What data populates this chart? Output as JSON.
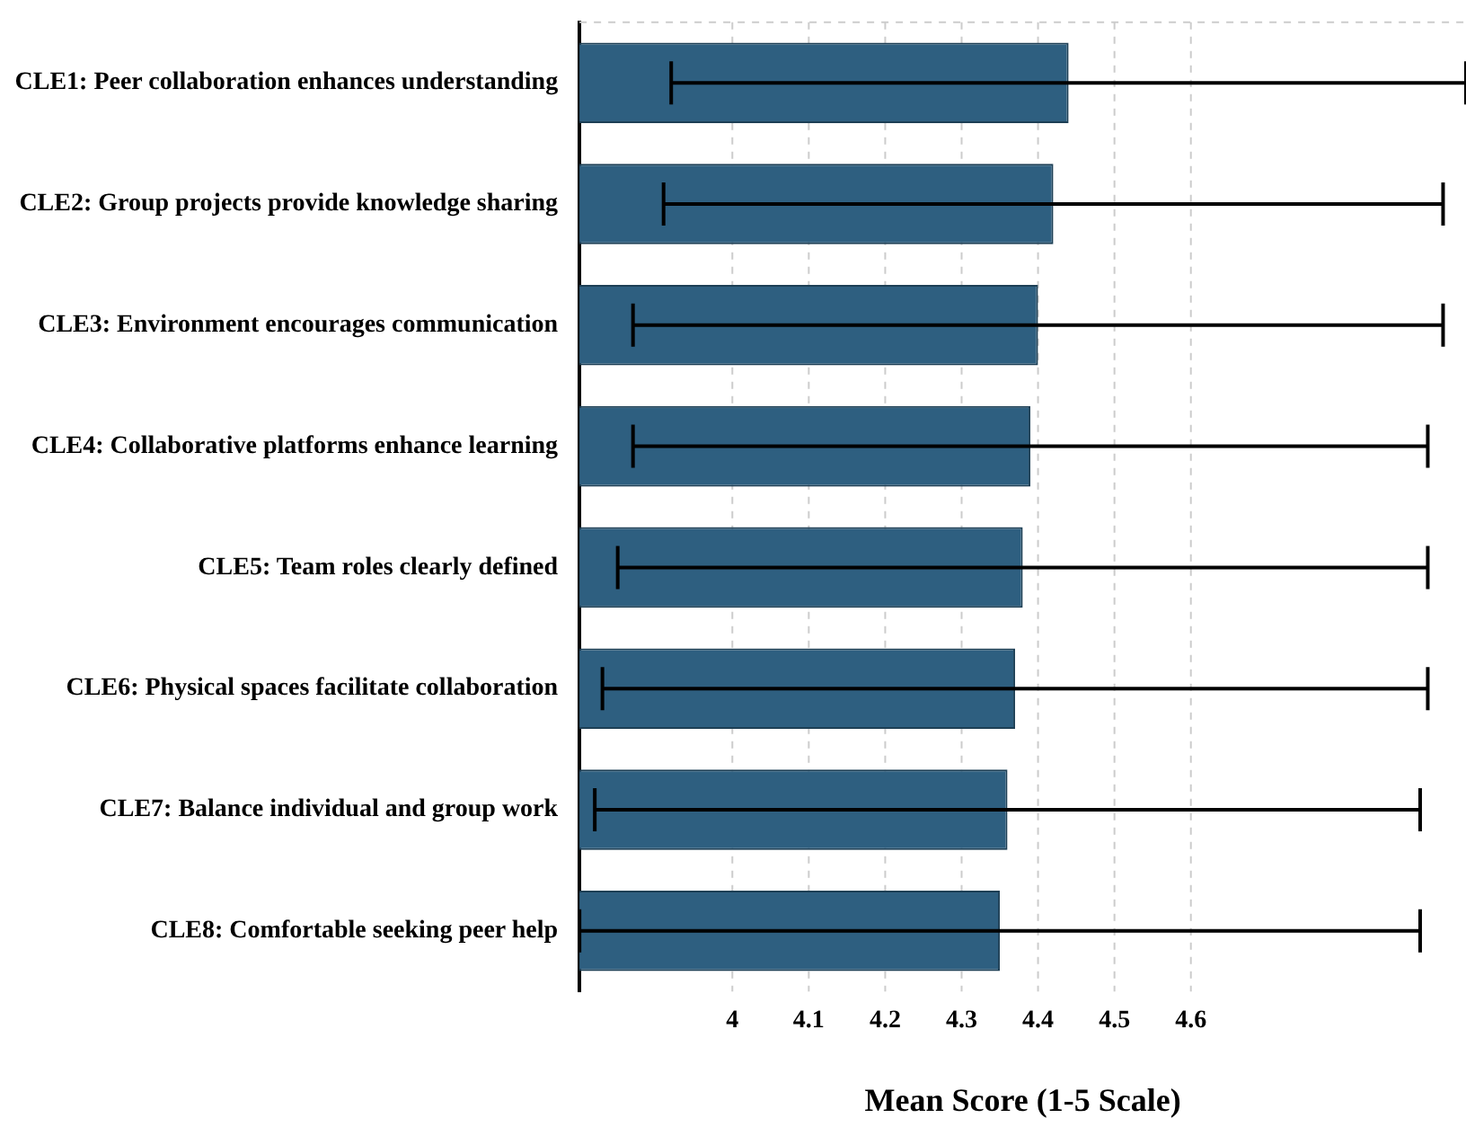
{
  "chart_data": {
    "type": "bar",
    "orientation": "horizontal",
    "xlabel": "Mean Score (1-5 Scale)",
    "categories": [
      "CLE1: Peer collaboration enhances understanding",
      "CLE2: Group projects provide knowledge sharing",
      "CLE3: Environment encourages communication",
      "CLE4: Collaborative platforms enhance learning",
      "CLE5: Team roles clearly defined",
      "CLE6: Physical spaces facilitate collaboration",
      "CLE7: Balance individual and group work",
      "CLE8: Comfortable seeking peer help"
    ],
    "values": [
      4.44,
      4.42,
      4.4,
      4.39,
      4.38,
      4.37,
      4.36,
      4.35
    ],
    "errors": [
      0.52,
      0.51,
      0.53,
      0.52,
      0.53,
      0.54,
      0.54,
      0.55
    ],
    "color": "#2e5f80",
    "xlim": [
      3.8,
      4.96
    ],
    "xticks": [
      4,
      4.1,
      4.2,
      4.3,
      4.4,
      4.5,
      4.6
    ],
    "grid": "x",
    "legend": false
  }
}
